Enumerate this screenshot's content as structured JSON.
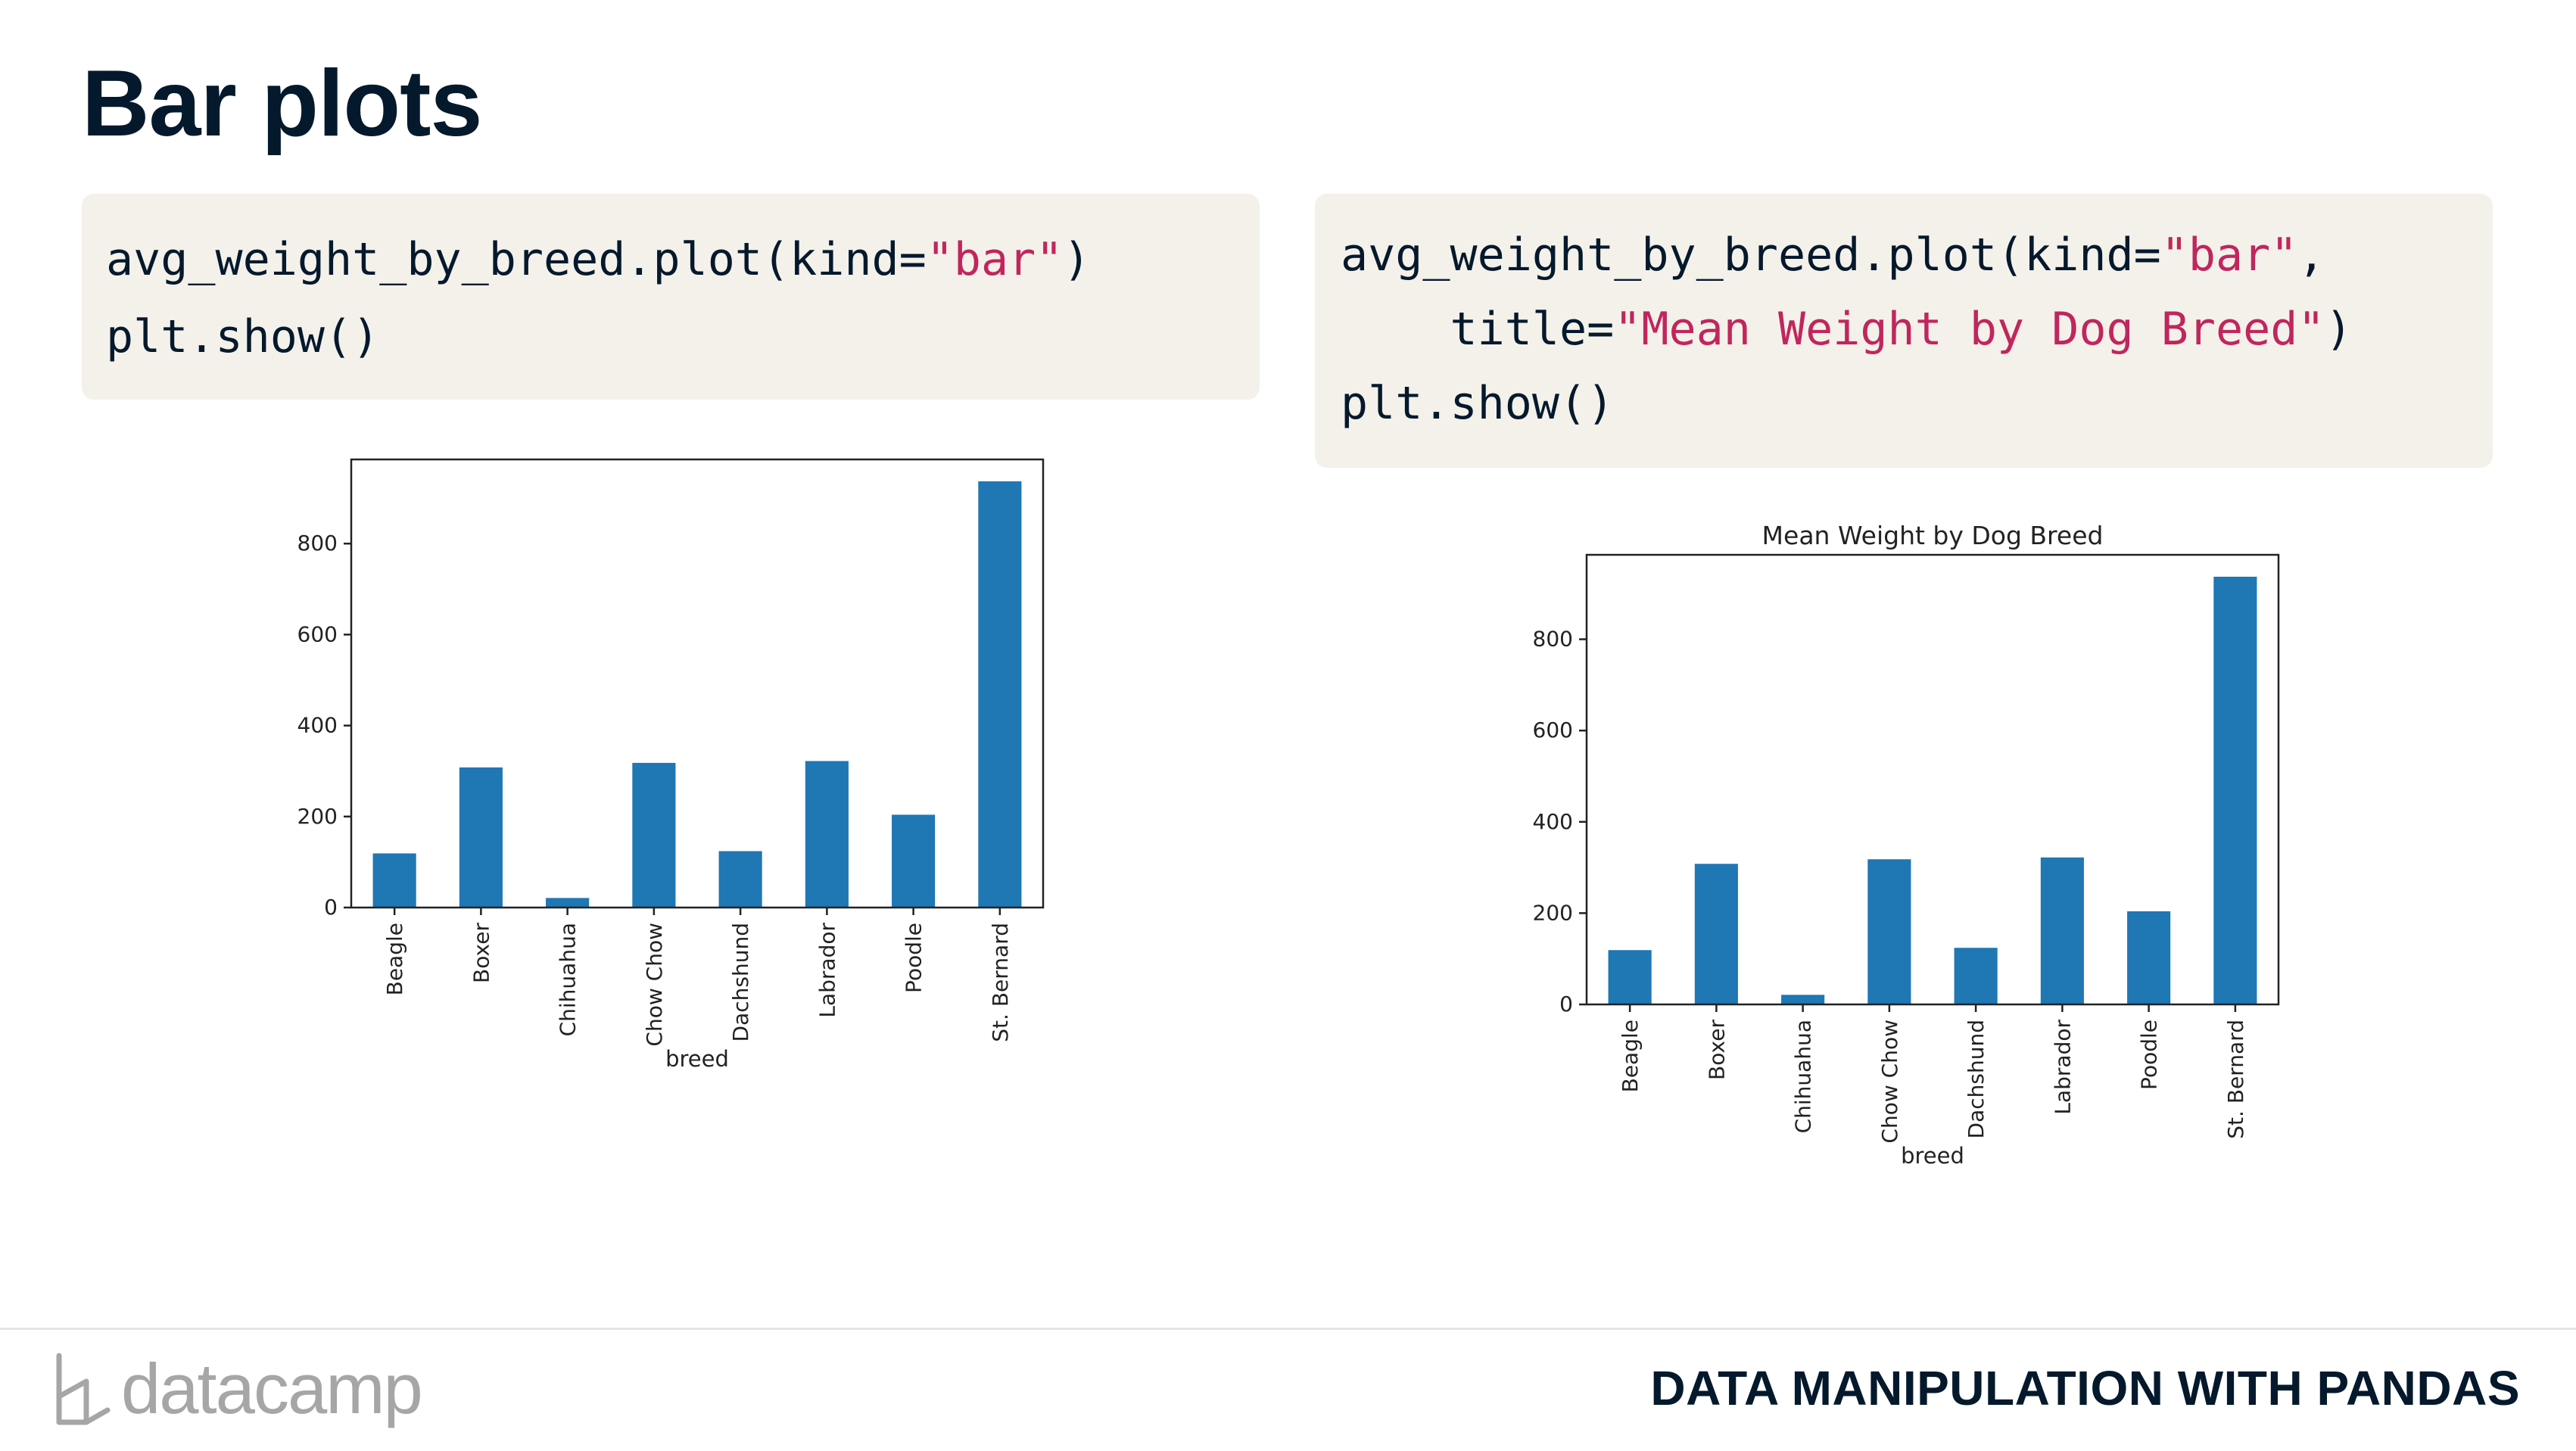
{
  "slide": {
    "title": "Bar plots",
    "footer_course": "DATA MANIPULATION WITH PANDAS",
    "logo_text": "datacamp"
  },
  "code_left": {
    "line1_pre": "avg_weight_by_breed.plot(kind=",
    "line1_str": "\"bar\"",
    "line1_post": ")",
    "line2": "plt.show()"
  },
  "code_right": {
    "line1_pre": "avg_weight_by_breed.plot(kind=",
    "line1_str": "\"bar\"",
    "line1_post": ",",
    "line2_pre": "    title=",
    "line2_str": "\"Mean Weight by Dog Breed\"",
    "line2_post": ")",
    "line3": "plt.show()"
  },
  "colors": {
    "bar": "#1f77b4",
    "code_bg": "#f4f1ea",
    "string": "#c0265d",
    "text_dark": "#05192d"
  },
  "chart_data": [
    {
      "type": "bar",
      "title": "",
      "xlabel": "breed",
      "ylabel": "",
      "categories": [
        "Beagle",
        "Boxer",
        "Chihuahua",
        "Chow Chow",
        "Dachshund",
        "Labrador",
        "Poodle",
        "St. Bernard"
      ],
      "values": [
        119,
        308,
        21,
        318,
        124,
        322,
        204,
        937
      ],
      "ylim": [
        0,
        985
      ],
      "yticks": [
        0,
        200,
        400,
        600,
        800
      ],
      "grid": false
    },
    {
      "type": "bar",
      "title": "Mean Weight by Dog Breed",
      "xlabel": "breed",
      "ylabel": "",
      "categories": [
        "Beagle",
        "Boxer",
        "Chihuahua",
        "Chow Chow",
        "Dachshund",
        "Labrador",
        "Poodle",
        "St. Bernard"
      ],
      "values": [
        119,
        308,
        21,
        318,
        124,
        322,
        204,
        937
      ],
      "ylim": [
        0,
        985
      ],
      "yticks": [
        0,
        200,
        400,
        600,
        800
      ],
      "grid": false
    }
  ]
}
